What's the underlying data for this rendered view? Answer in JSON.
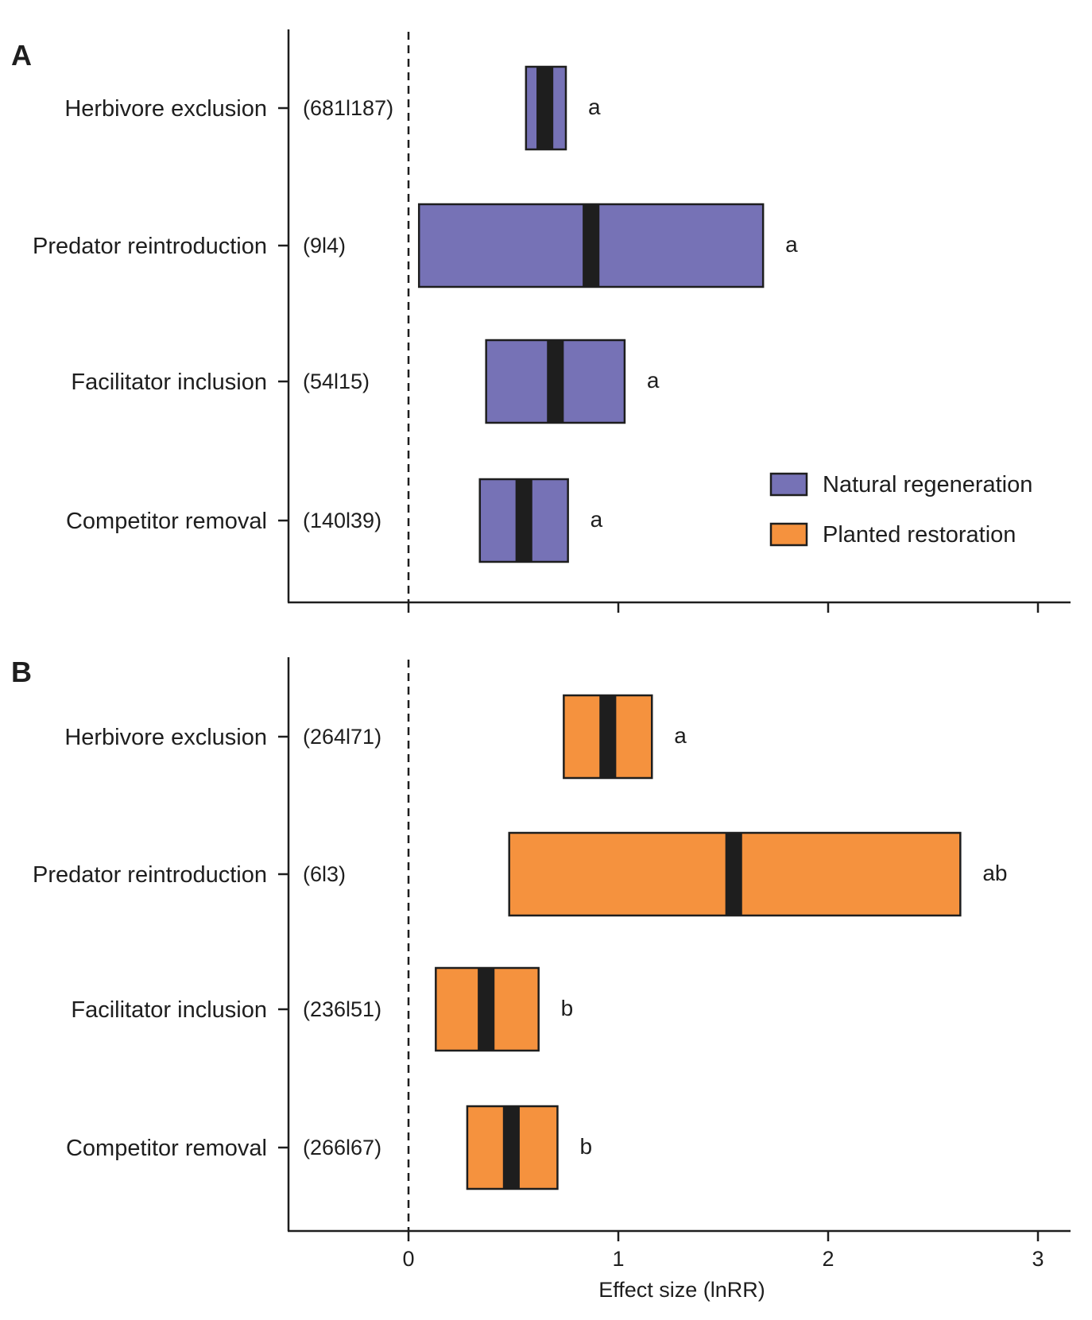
{
  "chart_data": {
    "type": "box",
    "xlabel": "Effect size (lnRR)",
    "xlim": [
      -0.57,
      3.17
    ],
    "xticks": [
      0,
      1,
      2,
      3
    ],
    "zero_line": "dashed",
    "legend": {
      "placement": "lower-right of panel A",
      "items": [
        {
          "label": "Natural regeneration",
          "color": "#7672b6"
        },
        {
          "label": "Planted restoration",
          "color": "#f5923e"
        }
      ]
    },
    "panels": [
      {
        "letter": "A",
        "series": "Natural regeneration",
        "color": "#7672b6",
        "categories": [
          {
            "label": "Herbivore exclusion",
            "n": "(681l187)",
            "low": 0.56,
            "high": 0.75,
            "median_low": 0.61,
            "median_high": 0.69,
            "letter": "a"
          },
          {
            "label": "Predator reintroduction",
            "n": "(9l4)",
            "low": 0.05,
            "high": 1.69,
            "median_low": 0.83,
            "median_high": 0.91,
            "letter": "a"
          },
          {
            "label": "Facilitator inclusion",
            "n": "(54l15)",
            "low": 0.37,
            "high": 1.03,
            "median_low": 0.66,
            "median_high": 0.74,
            "letter": "a"
          },
          {
            "label": "Competitor removal",
            "n": "(140l39)",
            "low": 0.34,
            "high": 0.76,
            "median_low": 0.51,
            "median_high": 0.59,
            "letter": "a"
          }
        ]
      },
      {
        "letter": "B",
        "series": "Planted restoration",
        "color": "#f5923e",
        "categories": [
          {
            "label": "Herbivore exclusion",
            "n": "(264l71)",
            "low": 0.74,
            "high": 1.16,
            "median_low": 0.91,
            "median_high": 0.99,
            "letter": "a"
          },
          {
            "label": "Predator reintroduction",
            "n": "(6l3)",
            "low": 0.48,
            "high": 2.63,
            "median_low": 1.51,
            "median_high": 1.59,
            "letter": "ab"
          },
          {
            "label": "Facilitator inclusion",
            "n": "(236l51)",
            "low": 0.13,
            "high": 0.62,
            "median_low": 0.33,
            "median_high": 0.41,
            "letter": "b"
          },
          {
            "label": "Competitor removal",
            "n": "(266l67)",
            "low": 0.28,
            "high": 0.71,
            "median_low": 0.45,
            "median_high": 0.53,
            "letter": "b"
          }
        ]
      }
    ]
  }
}
